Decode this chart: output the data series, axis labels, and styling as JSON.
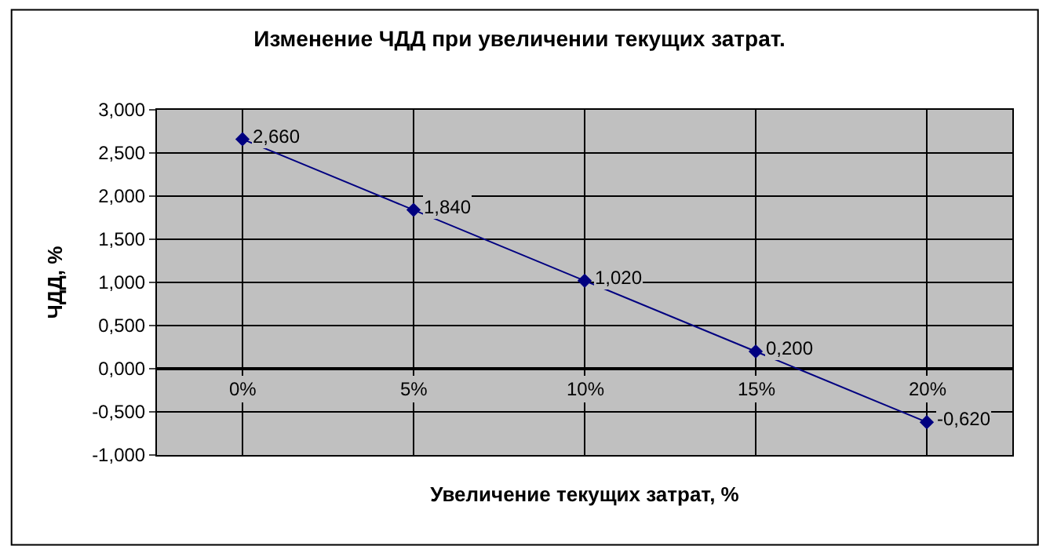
{
  "chart_data": {
    "type": "line",
    "title": "Изменение ЧДД при увеличении текущих затрат.",
    "xlabel": "Увеличение текущих затрат, %",
    "ylabel": "ЧДД, %",
    "categories": [
      "0%",
      "5%",
      "10%",
      "15%",
      "20%"
    ],
    "series": [
      {
        "color": "#000080",
        "values": [
          2.66,
          1.84,
          1.02,
          0.2,
          -0.62
        ],
        "value_labels": [
          "2,660",
          "1,840",
          "1,020",
          "0,200",
          "-0,620"
        ]
      }
    ],
    "ylim": [
      -1,
      3
    ],
    "yticks": [
      {
        "value": -1,
        "label": "-1,000"
      },
      {
        "value": -0.5,
        "label": "-0,500"
      },
      {
        "value": 0,
        "label": "0,000"
      },
      {
        "value": 0.5,
        "label": "0,500"
      },
      {
        "value": 1,
        "label": "1,000"
      },
      {
        "value": 1.5,
        "label": "1,500"
      },
      {
        "value": 2,
        "label": "2,000"
      },
      {
        "value": 2.5,
        "label": "2,500"
      },
      {
        "value": 3,
        "label": "3,000"
      }
    ],
    "grid": true,
    "legend": false,
    "marker": "diamond",
    "line_style": "solid"
  }
}
